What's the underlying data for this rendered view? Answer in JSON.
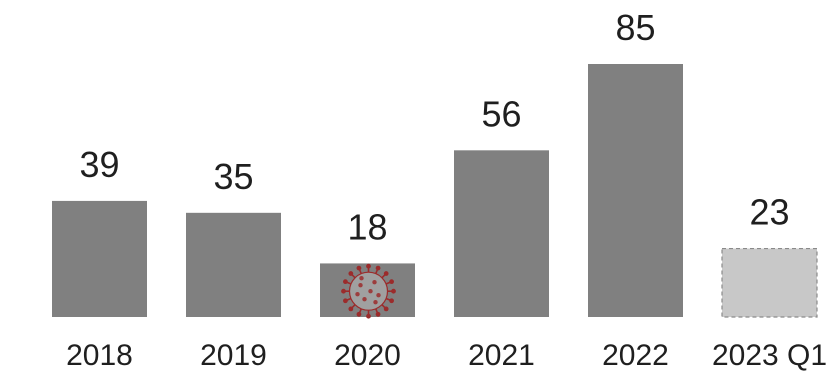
{
  "chart_data": {
    "type": "bar",
    "categories": [
      "2018",
      "2019",
      "2020",
      "2021",
      "2022",
      "2023 Q1"
    ],
    "values": [
      39,
      35,
      18,
      56,
      85,
      23
    ],
    "data_labels": [
      "39",
      "35",
      "18",
      "56",
      "85",
      "23"
    ],
    "title": "",
    "xlabel": "",
    "ylabel": "",
    "ylim": [
      0,
      85
    ],
    "grid": false,
    "legend": "none",
    "colors": {
      "bar": "#808080",
      "bar_highlight": "#c8c8c8",
      "bar_highlight_border": "#8a8a8a",
      "virus": "#9b2b2b",
      "text": "#1f1f1f"
    },
    "highlight_index": 5,
    "annotations": [
      {
        "category": "2020",
        "icon": "coronavirus-icon"
      }
    ]
  }
}
